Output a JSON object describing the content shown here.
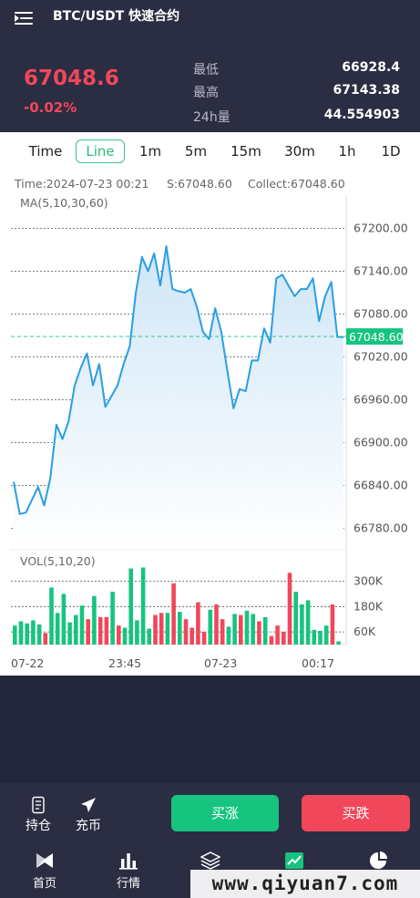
{
  "header": {
    "title": "BTC/USDT 快速合约",
    "price": "67048.6",
    "change_pct": "-0.02%",
    "stats": [
      {
        "label": "最低",
        "value": "66928.4"
      },
      {
        "label": "最高",
        "value": "67143.38"
      },
      {
        "label": "24h量",
        "value": "44.554903"
      }
    ]
  },
  "tabs": [
    "Time",
    "Line",
    "1m",
    "5m",
    "15m",
    "30m",
    "1h",
    "1D"
  ],
  "active_tab": "Line",
  "chart_info": {
    "time": "Time:2024-07-23 00:21",
    "s": "S:67048.60",
    "collect": "Collect:67048.60",
    "ma": "MA(5,10,30,60)",
    "vol": "VOL(5,10,20)",
    "current_price_label": "67048.60"
  },
  "chart_data": {
    "type": "line",
    "price_axis": [
      "67200.00",
      "67140.00",
      "67080.00",
      "67020.00",
      "66960.00",
      "66900.00",
      "66840.00",
      "66780.00"
    ],
    "price_ticks": [
      67200,
      67140,
      67080,
      67020,
      66960,
      66900,
      66840,
      66780
    ],
    "ylim": [
      66750,
      67230
    ],
    "current_price": 67048.6,
    "x_labels": [
      "07-22",
      "23:45",
      "07-23",
      "00:17"
    ],
    "values": [
      66845,
      66800,
      66802,
      66820,
      66838,
      66812,
      66850,
      66925,
      66905,
      66930,
      66980,
      67005,
      67025,
      66980,
      67010,
      66950,
      66965,
      66980,
      67010,
      67035,
      67110,
      67160,
      67140,
      67165,
      67120,
      67175,
      67115,
      67112,
      67110,
      67115,
      67090,
      67055,
      67045,
      67088,
      67055,
      67000,
      66948,
      66975,
      66972,
      67015,
      67015,
      67060,
      67040,
      67130,
      67135,
      67120,
      67105,
      67115,
      67115,
      67130,
      67070,
      67105,
      67125,
      67048,
      67048
    ],
    "volume_axis": [
      "300K",
      "180K",
      "60K"
    ],
    "volume_ticks": [
      300000,
      180000,
      60000
    ],
    "volume_ylim": [
      0,
      380000
    ],
    "volume": [
      {
        "v": 90000,
        "up": true
      },
      {
        "v": 110000,
        "up": true
      },
      {
        "v": 100000,
        "up": true
      },
      {
        "v": 115000,
        "up": true
      },
      {
        "v": 95000,
        "up": true
      },
      {
        "v": 55000,
        "up": false
      },
      {
        "v": 270000,
        "up": true
      },
      {
        "v": 150000,
        "up": true
      },
      {
        "v": 240000,
        "up": true
      },
      {
        "v": 105000,
        "up": true
      },
      {
        "v": 140000,
        "up": true
      },
      {
        "v": 185000,
        "up": true
      },
      {
        "v": 120000,
        "up": false
      },
      {
        "v": 230000,
        "up": true
      },
      {
        "v": 130000,
        "up": false
      },
      {
        "v": 130000,
        "up": false
      },
      {
        "v": 250000,
        "up": true
      },
      {
        "v": 90000,
        "up": false
      },
      {
        "v": 80000,
        "up": true
      },
      {
        "v": 360000,
        "up": true
      },
      {
        "v": 115000,
        "up": true
      },
      {
        "v": 365000,
        "up": true
      },
      {
        "v": 75000,
        "up": true
      },
      {
        "v": 140000,
        "up": false
      },
      {
        "v": 150000,
        "up": false
      },
      {
        "v": 150000,
        "up": true
      },
      {
        "v": 290000,
        "up": false
      },
      {
        "v": 155000,
        "up": true
      },
      {
        "v": 120000,
        "up": false
      },
      {
        "v": 80000,
        "up": false
      },
      {
        "v": 200000,
        "up": false
      },
      {
        "v": 60000,
        "up": false
      },
      {
        "v": 165000,
        "up": true
      },
      {
        "v": 190000,
        "up": false
      },
      {
        "v": 120000,
        "up": false
      },
      {
        "v": 85000,
        "up": true
      },
      {
        "v": 145000,
        "up": true
      },
      {
        "v": 140000,
        "up": false
      },
      {
        "v": 160000,
        "up": true
      },
      {
        "v": 145000,
        "up": true
      },
      {
        "v": 110000,
        "up": false
      },
      {
        "v": 130000,
        "up": true
      },
      {
        "v": 40000,
        "up": false
      },
      {
        "v": 90000,
        "up": false
      },
      {
        "v": 60000,
        "up": false
      },
      {
        "v": 340000,
        "up": false
      },
      {
        "v": 250000,
        "up": true
      },
      {
        "v": 190000,
        "up": true
      },
      {
        "v": 210000,
        "up": true
      },
      {
        "v": 70000,
        "up": true
      },
      {
        "v": 65000,
        "up": true
      },
      {
        "v": 90000,
        "up": true
      },
      {
        "v": 190000,
        "up": false
      },
      {
        "v": 15000,
        "up": true
      }
    ],
    "colors": {
      "line": "#2a9ee4",
      "up": "#16c47f",
      "down": "#f0475b",
      "current": "#16c47f"
    }
  },
  "actions": {
    "positions_label": "持仓",
    "deposit_label": "充币",
    "buy_label": "买涨",
    "sell_label": "买跌"
  },
  "nav": [
    "首页",
    "行情",
    "",
    "",
    ""
  ],
  "watermark": "www.qiyuan7.com"
}
